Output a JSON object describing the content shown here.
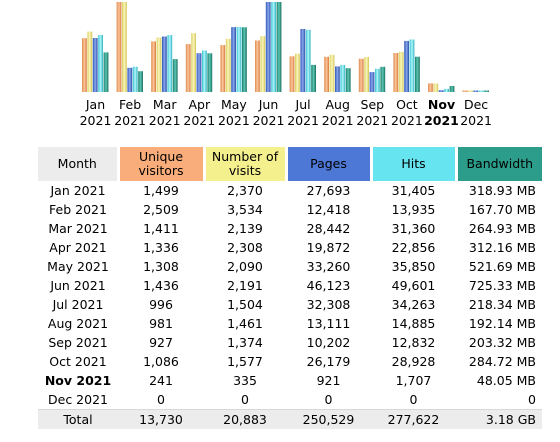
{
  "colors": {
    "visitors": "#f9ad7a",
    "visits": "#f5f08e",
    "pages": "#4e78d6",
    "hits": "#66e4ef",
    "bandwidth": "#2c9d8a",
    "month_header": "#ececec"
  },
  "chart_data": {
    "type": "bar",
    "categories": [
      "Jan",
      "Feb",
      "Mar",
      "Apr",
      "May",
      "Jun",
      "Jul",
      "Aug",
      "Sep",
      "Oct",
      "Nov",
      "Dec"
    ],
    "years": [
      "2021",
      "2021",
      "2021",
      "2021",
      "2021",
      "2021",
      "2021",
      "2021",
      "2021",
      "2021",
      "2021",
      "2021"
    ],
    "highlight_index": 10,
    "series": [
      {
        "name": "Unique visitors",
        "values": [
          1499,
          2509,
          1411,
          1336,
          1308,
          1436,
          996,
          981,
          927,
          1086,
          241,
          0
        ]
      },
      {
        "name": "Number of visits",
        "values": [
          2370,
          3534,
          2139,
          2308,
          2090,
          2191,
          1504,
          1461,
          1374,
          1577,
          335,
          0
        ]
      },
      {
        "name": "Pages",
        "values": [
          27693,
          12418,
          28442,
          19872,
          33260,
          46123,
          32308,
          13111,
          10202,
          26179,
          921,
          0
        ]
      },
      {
        "name": "Hits",
        "values": [
          31405,
          13935,
          31360,
          22856,
          35850,
          49601,
          34263,
          14885,
          12832,
          28928,
          1707,
          0
        ]
      },
      {
        "name": "Bandwidth",
        "values": [
          318.93,
          167.7,
          264.93,
          312.16,
          521.69,
          725.33,
          218.34,
          192.14,
          203.32,
          284.72,
          48.05,
          0
        ]
      }
    ]
  },
  "table": {
    "headers": {
      "month": "Month",
      "visitors": "Unique visitors",
      "visits": "Number of visits",
      "pages": "Pages",
      "hits": "Hits",
      "bandwidth": "Bandwidth"
    },
    "rows": [
      {
        "month": "Jan 2021",
        "visitors": "1,499",
        "visits": "2,370",
        "pages": "27,693",
        "hits": "31,405",
        "bandwidth": "318.93 MB"
      },
      {
        "month": "Feb 2021",
        "visitors": "2,509",
        "visits": "3,534",
        "pages": "12,418",
        "hits": "13,935",
        "bandwidth": "167.70 MB"
      },
      {
        "month": "Mar 2021",
        "visitors": "1,411",
        "visits": "2,139",
        "pages": "28,442",
        "hits": "31,360",
        "bandwidth": "264.93 MB"
      },
      {
        "month": "Apr 2021",
        "visitors": "1,336",
        "visits": "2,308",
        "pages": "19,872",
        "hits": "22,856",
        "bandwidth": "312.16 MB"
      },
      {
        "month": "May 2021",
        "visitors": "1,308",
        "visits": "2,090",
        "pages": "33,260",
        "hits": "35,850",
        "bandwidth": "521.69 MB"
      },
      {
        "month": "Jun 2021",
        "visitors": "1,436",
        "visits": "2,191",
        "pages": "46,123",
        "hits": "49,601",
        "bandwidth": "725.33 MB"
      },
      {
        "month": "Jul 2021",
        "visitors": "996",
        "visits": "1,504",
        "pages": "32,308",
        "hits": "34,263",
        "bandwidth": "218.34 MB"
      },
      {
        "month": "Aug 2021",
        "visitors": "981",
        "visits": "1,461",
        "pages": "13,111",
        "hits": "14,885",
        "bandwidth": "192.14 MB"
      },
      {
        "month": "Sep 2021",
        "visitors": "927",
        "visits": "1,374",
        "pages": "10,202",
        "hits": "12,832",
        "bandwidth": "203.32 MB"
      },
      {
        "month": "Oct 2021",
        "visitors": "1,086",
        "visits": "1,577",
        "pages": "26,179",
        "hits": "28,928",
        "bandwidth": "284.72 MB"
      },
      {
        "month": "Nov 2021",
        "visitors": "241",
        "visits": "335",
        "pages": "921",
        "hits": "1,707",
        "bandwidth": "48.05 MB",
        "bold": true
      },
      {
        "month": "Dec 2021",
        "visitors": "0",
        "visits": "0",
        "pages": "0",
        "hits": "0",
        "bandwidth": "0"
      }
    ],
    "total": {
      "month": "Total",
      "visitors": "13,730",
      "visits": "20,883",
      "pages": "250,529",
      "hits": "277,622",
      "bandwidth": "3.18 GB"
    }
  }
}
